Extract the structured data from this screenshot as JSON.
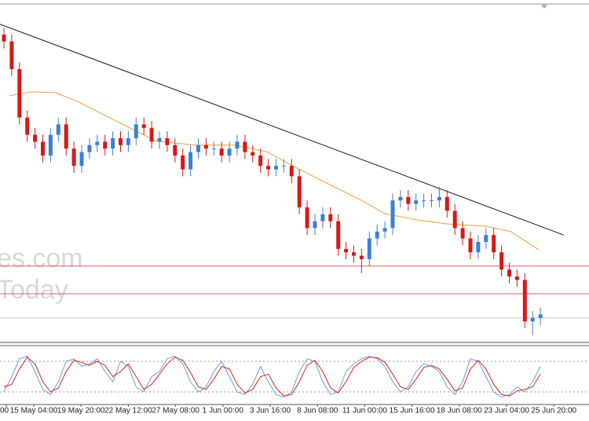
{
  "chart_data": {
    "type": "candlestick",
    "ylim": [
      0,
      100
    ],
    "watermark": [
      "es.com",
      "Today"
    ],
    "x_labels": [
      "00",
      "15 May 04:00",
      "19 May 20:00",
      "22 May 12:00",
      "27 May 08:00",
      "1 Jun 00:00",
      "3 Jun 16:00",
      "8 Jun 08:00",
      "11 Jun 00:00",
      "15 Jun 16:00",
      "18 Jun 08:00",
      "23 Jun 04:00",
      "25 Jun 20:00"
    ],
    "candles": {
      "up_color": "#3d7fd6",
      "down_color": "#d81818",
      "open": [
        90,
        88,
        80,
        66,
        61,
        59,
        55,
        61,
        64,
        57,
        52,
        56,
        58,
        59,
        57,
        60,
        58,
        60,
        64,
        63,
        59,
        60,
        58,
        55,
        51,
        56,
        58,
        57,
        57,
        55,
        57,
        59,
        56,
        55,
        52,
        51,
        52,
        52,
        49,
        40,
        34,
        36,
        38,
        36,
        28,
        27,
        26,
        25,
        31,
        33,
        34,
        42,
        43,
        41,
        42,
        42,
        42,
        43,
        39,
        34,
        31,
        27,
        30,
        32,
        27,
        22,
        20,
        19,
        7,
        8
      ],
      "high": [
        92,
        90,
        82,
        68,
        63,
        61,
        63,
        66,
        66,
        59,
        58,
        60,
        61,
        61,
        62,
        62,
        62,
        66,
        66,
        65,
        62,
        62,
        60,
        57,
        58,
        60,
        60,
        59,
        59,
        59,
        61,
        61,
        58,
        57,
        54,
        54,
        54,
        54,
        51,
        42,
        38,
        40,
        40,
        38,
        30,
        29,
        28,
        33,
        35,
        36,
        44,
        45,
        45,
        44,
        44,
        44,
        46,
        45,
        41,
        36,
        33,
        32,
        34,
        34,
        29,
        24,
        22,
        21,
        10,
        11
      ],
      "low": [
        86,
        78,
        64,
        59,
        57,
        53,
        53,
        59,
        55,
        50,
        50,
        54,
        56,
        55,
        55,
        56,
        56,
        58,
        61,
        57,
        57,
        56,
        53,
        49,
        49,
        54,
        55,
        55,
        53,
        53,
        55,
        54,
        53,
        50,
        49,
        49,
        50,
        47,
        38,
        32,
        32,
        34,
        34,
        26,
        25,
        24,
        21,
        23,
        29,
        31,
        32,
        40,
        39,
        39,
        40,
        40,
        40,
        37,
        32,
        29,
        25,
        25,
        28,
        25,
        20,
        18,
        17,
        5,
        3,
        6
      ],
      "close": [
        88,
        80,
        66,
        61,
        59,
        55,
        61,
        64,
        57,
        52,
        56,
        58,
        59,
        57,
        60,
        58,
        60,
        64,
        63,
        59,
        60,
        58,
        55,
        51,
        56,
        58,
        57,
        57,
        55,
        57,
        59,
        56,
        55,
        52,
        51,
        52,
        52,
        49,
        40,
        34,
        36,
        38,
        36,
        28,
        27,
        26,
        25,
        31,
        33,
        34,
        42,
        43,
        41,
        42,
        42,
        42,
        43,
        39,
        34,
        31,
        27,
        30,
        32,
        27,
        22,
        20,
        19,
        7,
        8,
        9
      ]
    },
    "ma": {
      "color": "#f0a040",
      "x": [
        0.7,
        3.5,
        6.6,
        9.6,
        14.6,
        19.7,
        24.7,
        29.8,
        33.8,
        37.9,
        41.9,
        46,
        49,
        53,
        57,
        62.1,
        65.2,
        68.8
      ],
      "values": [
        72.3,
        73.4,
        73.2,
        70.5,
        64.8,
        59.1,
        58,
        58,
        56.1,
        51.1,
        46.6,
        42,
        38.2,
        36.4,
        35.2,
        34.5,
        33,
        27.7
      ]
    },
    "trendline": {
      "color": "#111111",
      "x": [
        -0.5,
        72
      ],
      "values": [
        93,
        32
      ]
    },
    "levels": [
      {
        "value": 23,
        "color": "#e06060"
      },
      {
        "value": 15,
        "color": "#e06060"
      },
      {
        "value": 8,
        "color": "#c8c8c8"
      }
    ],
    "stochastic": {
      "ylim": [
        0,
        100
      ],
      "levels": [
        80,
        20
      ],
      "series": [
        {
          "color": "#6a9ee0",
          "values": [
            20,
            50,
            85,
            90,
            60,
            25,
            15,
            40,
            80,
            85,
            70,
            75,
            85,
            60,
            40,
            80,
            70,
            30,
            20,
            50,
            60,
            85,
            90,
            75,
            40,
            20,
            30,
            60,
            80,
            50,
            20,
            15,
            35,
            70,
            40,
            15,
            10,
            20,
            60,
            85,
            80,
            40,
            15,
            20,
            60,
            75,
            85,
            90,
            85,
            70,
            40,
            20,
            30,
            60,
            75,
            70,
            60,
            30,
            15,
            40,
            85,
            80,
            50,
            20,
            10,
            15,
            30,
            20,
            40,
            70
          ]
        },
        {
          "color": "#e02020",
          "values": [
            30,
            35,
            65,
            88,
            75,
            40,
            20,
            28,
            60,
            82,
            78,
            72,
            80,
            72,
            50,
            60,
            75,
            50,
            25,
            35,
            55,
            75,
            88,
            82,
            58,
            30,
            25,
            45,
            70,
            65,
            35,
            18,
            25,
            50,
            55,
            28,
            12,
            15,
            40,
            72,
            82,
            60,
            28,
            18,
            40,
            68,
            80,
            88,
            87,
            78,
            55,
            30,
            25,
            45,
            68,
            72,
            65,
            45,
            22,
            28,
            65,
            82,
            65,
            35,
            15,
            12,
            22,
            25,
            30,
            55
          ]
        }
      ]
    }
  }
}
